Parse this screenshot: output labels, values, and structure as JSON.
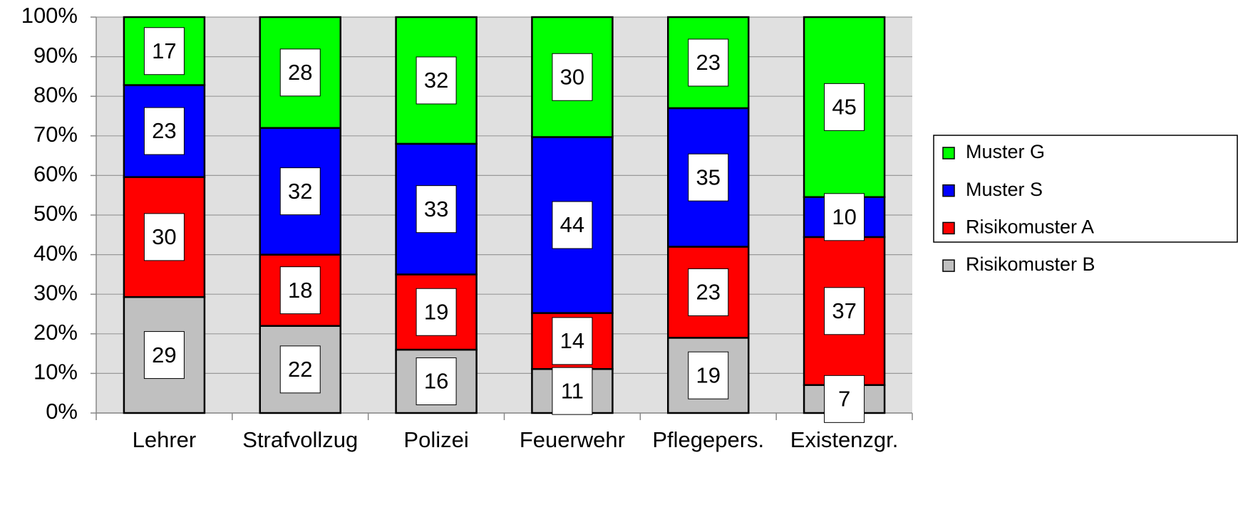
{
  "chart_data": {
    "type": "bar",
    "stacking": "percent",
    "categories": [
      "Lehrer",
      "Strafvollzug",
      "Polizei",
      "Feuerwehr",
      "Pflegepers.",
      "Existenzgr."
    ],
    "series": [
      {
        "name": "Risikomuster B",
        "color": "#c0c0c0",
        "values": [
          29,
          22,
          16,
          11,
          19,
          7
        ]
      },
      {
        "name": "Risikomuster A",
        "color": "#ff0000",
        "values": [
          30,
          18,
          19,
          14,
          23,
          37
        ]
      },
      {
        "name": "Muster S",
        "color": "#0000ff",
        "values": [
          23,
          32,
          33,
          44,
          35,
          10
        ]
      },
      {
        "name": "Muster G",
        "color": "#00ff00",
        "values": [
          17,
          28,
          32,
          30,
          23,
          45
        ]
      }
    ],
    "ylim": [
      0,
      100
    ],
    "yticks": [
      {
        "value": 0,
        "label": "0%"
      },
      {
        "value": 10,
        "label": "10%"
      },
      {
        "value": 20,
        "label": "20%"
      },
      {
        "value": 30,
        "label": "30%"
      },
      {
        "value": 40,
        "label": "40%"
      },
      {
        "value": 50,
        "label": "50%"
      },
      {
        "value": 60,
        "label": "60%"
      },
      {
        "value": 70,
        "label": "70%"
      },
      {
        "value": 80,
        "label": "80%"
      },
      {
        "value": 90,
        "label": "90%"
      },
      {
        "value": 100,
        "label": "100%"
      }
    ],
    "grid": true,
    "legend": "right"
  }
}
